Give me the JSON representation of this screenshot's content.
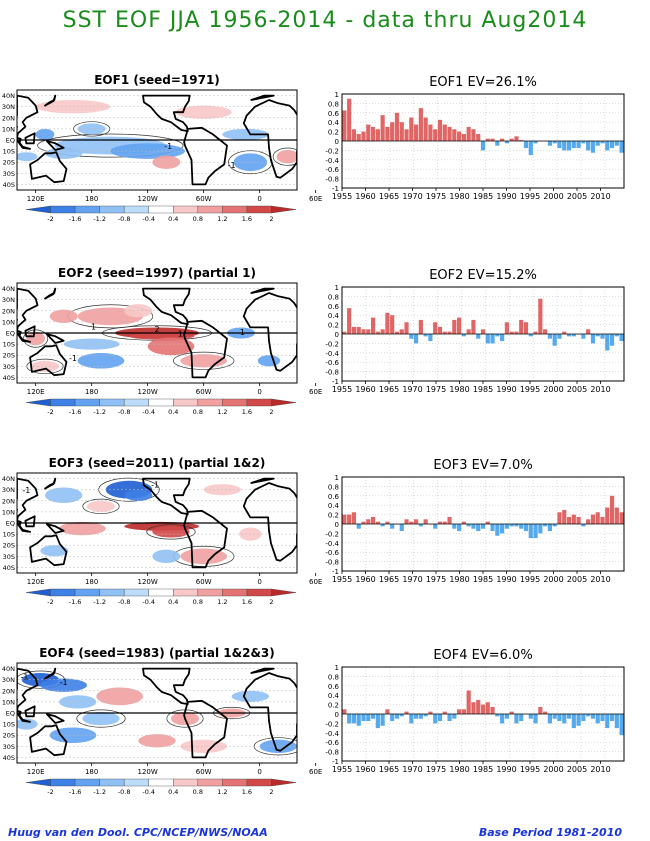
{
  "page": {
    "title": "SST EOF JJA 1956-2014 - data thru Aug2014"
  },
  "colors": {
    "title": "#1a8c1a",
    "footer": "#1a35d8",
    "positive_bar": "#e06666",
    "negative_bar": "#55aaee",
    "scale": [
      "#1e5fd4",
      "#3d80e6",
      "#62a2f0",
      "#8fc1f5",
      "#bcdcfa",
      "#ffffff",
      "#f8c8c8",
      "#f1a0a0",
      "#e47373",
      "#d24848",
      "#bb2a2a"
    ]
  },
  "map_axes": {
    "lat_labels": [
      "40N",
      "30N",
      "20N",
      "10N",
      "EQ",
      "10S",
      "20S",
      "30S",
      "40S"
    ],
    "lon_labels": [
      "120E",
      "180",
      "120W",
      "60W",
      "0",
      "60E"
    ]
  },
  "colorbar": {
    "ticks": [
      "-2",
      "-1.6",
      "-1.2",
      "-0.8",
      "-0.4",
      "0.4",
      "0.8",
      "1.2",
      "1.6",
      "2"
    ]
  },
  "footer": {
    "left": "Huug van den Dool. CPC/NCEP/NWS/NOAA",
    "right": "Base Period 1981-2010"
  },
  "panels": [
    {
      "id": "eof1",
      "map_title": "EOF1  (seed=1971)",
      "chart_title": "EOF1  EV=26.1%",
      "map_labels": [
        {
          "text": "-1",
          "lat": -8,
          "lon": 262
        },
        {
          "text": "-1",
          "lat": -25,
          "lon": 330
        }
      ]
    },
    {
      "id": "eof2",
      "map_title": "EOF2  (seed=1997) (partial 1)",
      "chart_title": "EOF2  EV=15.2%",
      "map_labels": [
        {
          "text": "1",
          "lat": 3,
          "lon": 182
        },
        {
          "text": "2",
          "lat": 1,
          "lon": 250
        },
        {
          "text": "1",
          "lat": -3,
          "lon": 275
        },
        {
          "text": "-1",
          "lat": -2,
          "lon": 340
        },
        {
          "text": "-1",
          "lat": -25,
          "lon": 160
        }
      ]
    },
    {
      "id": "eof3",
      "map_title": "EOF3  (seed=2011) (partial 1&2)",
      "chart_title": "EOF3  EV=7.0%",
      "map_labels": [
        {
          "text": "-1",
          "lat": 27,
          "lon": 110
        },
        {
          "text": "-1",
          "lat": 32,
          "lon": 248
        }
      ]
    },
    {
      "id": "eof4",
      "map_title": "EOF4  (seed=1983) (partial 1&2&3)",
      "chart_title": "EOF4  EV=6.0%",
      "map_labels": [
        {
          "text": "-1",
          "lat": 30,
          "lon": 108
        },
        {
          "text": "-1",
          "lat": 25,
          "lon": 150
        }
      ]
    }
  ],
  "chart_data": [
    {
      "type": "bar",
      "title": "EOF1  EV=26.1%",
      "x": [
        1956,
        1957,
        1958,
        1959,
        1960,
        1961,
        1962,
        1963,
        1964,
        1965,
        1966,
        1967,
        1968,
        1969,
        1970,
        1971,
        1972,
        1973,
        1974,
        1975,
        1976,
        1977,
        1978,
        1979,
        1980,
        1981,
        1982,
        1983,
        1984,
        1985,
        1986,
        1987,
        1988,
        1989,
        1990,
        1991,
        1992,
        1993,
        1994,
        1995,
        1996,
        1997,
        1998,
        1999,
        2000,
        2001,
        2002,
        2003,
        2004,
        2005,
        2006,
        2007,
        2008,
        2009,
        2010,
        2011,
        2012,
        2013,
        2014
      ],
      "values": [
        0.65,
        0.9,
        0.25,
        0.15,
        0.2,
        0.35,
        0.3,
        0.25,
        0.55,
        0.3,
        0.4,
        0.6,
        0.4,
        0.25,
        0.5,
        0.35,
        0.7,
        0.5,
        0.35,
        0.25,
        0.45,
        0.35,
        0.3,
        0.25,
        0.2,
        0.15,
        0.3,
        0.25,
        0.15,
        -0.2,
        0.05,
        0.05,
        -0.1,
        0.05,
        -0.05,
        0.05,
        0.1,
        0.02,
        -0.15,
        -0.3,
        -0.05,
        0.0,
        0.0,
        -0.1,
        -0.05,
        -0.15,
        -0.2,
        -0.2,
        -0.15,
        -0.15,
        -0.05,
        -0.2,
        -0.25,
        -0.1,
        -0.05,
        -0.2,
        -0.15,
        -0.1,
        -0.25
      ],
      "ylim": [
        -1,
        1
      ],
      "y_ticks": [
        "1",
        "0.8",
        "0.6",
        "0.4",
        "0.2",
        "0",
        "-0.2",
        "-0.4",
        "-0.6",
        "-0.8",
        "-1"
      ],
      "x_ticks": [
        "1955",
        "1960",
        "1965",
        "1970",
        "1975",
        "1980",
        "1985",
        "1990",
        "1995",
        "2000",
        "2005",
        "2010"
      ],
      "grid": true
    },
    {
      "type": "bar",
      "title": "EOF2  EV=15.2%",
      "x": [
        1956,
        1957,
        1958,
        1959,
        1960,
        1961,
        1962,
        1963,
        1964,
        1965,
        1966,
        1967,
        1968,
        1969,
        1970,
        1971,
        1972,
        1973,
        1974,
        1975,
        1976,
        1977,
        1978,
        1979,
        1980,
        1981,
        1982,
        1983,
        1984,
        1985,
        1986,
        1987,
        1988,
        1989,
        1990,
        1991,
        1992,
        1993,
        1994,
        1995,
        1996,
        1997,
        1998,
        1999,
        2000,
        2001,
        2002,
        2003,
        2004,
        2005,
        2006,
        2007,
        2008,
        2009,
        2010,
        2011,
        2012,
        2013,
        2014
      ],
      "values": [
        0.05,
        0.55,
        0.15,
        0.15,
        0.1,
        0.1,
        0.35,
        0.05,
        0.1,
        0.45,
        0.4,
        0.05,
        0.1,
        0.25,
        -0.1,
        -0.2,
        0.3,
        -0.05,
        -0.15,
        0.25,
        0.15,
        0.05,
        0.05,
        0.3,
        0.35,
        -0.05,
        0.1,
        0.3,
        -0.1,
        0.1,
        -0.2,
        -0.2,
        -0.05,
        -0.15,
        0.25,
        0.05,
        0.05,
        0.3,
        0.25,
        -0.05,
        0.05,
        0.75,
        0.1,
        -0.1,
        -0.25,
        -0.1,
        0.05,
        -0.05,
        -0.05,
        0.0,
        -0.1,
        0.1,
        -0.2,
        -0.05,
        -0.1,
        -0.35,
        -0.25,
        -0.05,
        -0.15
      ],
      "ylim": [
        -1,
        1
      ],
      "y_ticks": [
        "1",
        "0.8",
        "0.6",
        "0.4",
        "0.2",
        "0",
        "-0.2",
        "-0.4",
        "-0.6",
        "-0.8",
        "-1"
      ],
      "x_ticks": [
        "1955",
        "1960",
        "1965",
        "1970",
        "1975",
        "1980",
        "1985",
        "1990",
        "1995",
        "2000",
        "2005",
        "2010"
      ],
      "grid": true
    },
    {
      "type": "bar",
      "title": "EOF3  EV=7.0%",
      "x": [
        1956,
        1957,
        1958,
        1959,
        1960,
        1961,
        1962,
        1963,
        1964,
        1965,
        1966,
        1967,
        1968,
        1969,
        1970,
        1971,
        1972,
        1973,
        1974,
        1975,
        1976,
        1977,
        1978,
        1979,
        1980,
        1981,
        1982,
        1983,
        1984,
        1985,
        1986,
        1987,
        1988,
        1989,
        1990,
        1991,
        1992,
        1993,
        1994,
        1995,
        1996,
        1997,
        1998,
        1999,
        2000,
        2001,
        2002,
        2003,
        2004,
        2005,
        2006,
        2007,
        2008,
        2009,
        2010,
        2011,
        2012,
        2013,
        2014
      ],
      "values": [
        0.2,
        0.2,
        0.25,
        -0.1,
        0.05,
        0.1,
        0.15,
        0.05,
        -0.05,
        0.05,
        -0.1,
        0.0,
        -0.15,
        0.1,
        0.05,
        0.1,
        -0.05,
        0.1,
        0.0,
        -0.1,
        0.05,
        0.05,
        0.15,
        -0.1,
        -0.15,
        0.05,
        -0.05,
        -0.1,
        -0.15,
        -0.1,
        0.05,
        -0.15,
        -0.25,
        -0.2,
        -0.1,
        -0.05,
        -0.05,
        -0.1,
        -0.15,
        -0.3,
        -0.3,
        -0.2,
        -0.05,
        -0.15,
        -0.05,
        0.25,
        0.3,
        0.15,
        0.2,
        0.15,
        -0.05,
        0.1,
        0.2,
        0.25,
        0.15,
        0.35,
        0.6,
        0.35,
        0.25
      ],
      "ylim": [
        -1,
        1
      ],
      "y_ticks": [
        "1",
        "0.8",
        "0.6",
        "0.4",
        "0.2",
        "0",
        "-0.2",
        "-0.4",
        "-0.6",
        "-0.8",
        "-1"
      ],
      "x_ticks": [
        "1955",
        "1960",
        "1965",
        "1970",
        "1975",
        "1980",
        "1985",
        "1990",
        "1995",
        "2000",
        "2005",
        "2010"
      ],
      "grid": true
    },
    {
      "type": "bar",
      "title": "EOF4  EV=6.0%",
      "x": [
        1956,
        1957,
        1958,
        1959,
        1960,
        1961,
        1962,
        1963,
        1964,
        1965,
        1966,
        1967,
        1968,
        1969,
        1970,
        1971,
        1972,
        1973,
        1974,
        1975,
        1976,
        1977,
        1978,
        1979,
        1980,
        1981,
        1982,
        1983,
        1984,
        1985,
        1986,
        1987,
        1988,
        1989,
        1990,
        1991,
        1992,
        1993,
        1994,
        1995,
        1996,
        1997,
        1998,
        1999,
        2000,
        2001,
        2002,
        2003,
        2004,
        2005,
        2006,
        2007,
        2008,
        2009,
        2010,
        2011,
        2012,
        2013,
        2014
      ],
      "values": [
        0.1,
        -0.2,
        -0.2,
        -0.25,
        -0.15,
        -0.15,
        -0.1,
        -0.3,
        -0.25,
        0.1,
        -0.15,
        -0.1,
        -0.05,
        0.05,
        -0.2,
        -0.1,
        -0.1,
        -0.05,
        0.05,
        -0.2,
        -0.15,
        0.05,
        -0.15,
        -0.1,
        0.1,
        0.1,
        0.5,
        0.25,
        0.3,
        0.2,
        0.25,
        0.15,
        -0.05,
        -0.2,
        -0.1,
        0.05,
        -0.2,
        -0.15,
        0.0,
        -0.1,
        -0.2,
        0.15,
        0.05,
        -0.2,
        -0.1,
        -0.15,
        -0.2,
        -0.1,
        -0.3,
        -0.25,
        -0.15,
        -0.05,
        -0.1,
        -0.2,
        -0.15,
        -0.3,
        -0.15,
        -0.3,
        -0.45
      ],
      "ylim": [
        -1,
        1
      ],
      "y_ticks": [
        "1",
        "0.8",
        "0.6",
        "0.4",
        "0.2",
        "0",
        "-0.2",
        "-0.4",
        "-0.6",
        "-0.8",
        "-1"
      ],
      "x_ticks": [
        "1955",
        "1960",
        "1965",
        "1970",
        "1975",
        "1980",
        "1985",
        "1990",
        "1995",
        "2000",
        "2005",
        "2010"
      ],
      "grid": true
    }
  ]
}
